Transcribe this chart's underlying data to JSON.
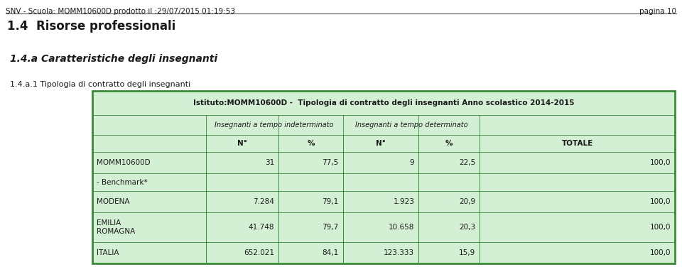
{
  "header_left": "SNV - Scuola: MOMM10600D prodotto il :29/07/2015 01:19:53",
  "header_right": "pagina 10",
  "title1": "1.4  Risorse professionali",
  "title2": "1.4.a Caratteristiche degli insegnanti",
  "title3": "1.4.a.1 Tipologia di contratto degli insegnanti",
  "table_title": "Istituto:MOMM10600D -  Tipologia di contratto degli insegnanti Anno scolastico 2014-2015",
  "col_header1": "Insegnanti a tempo indeterminato",
  "col_header2": "Insegnanti a tempo determinato",
  "col_sub1": "N°",
  "col_sub2": "%",
  "col_sub3": "N°",
  "col_sub4": "%",
  "col_sub5": "TOTALE",
  "rows": [
    {
      "label": "MOMM10600D",
      "n1": "31",
      "p1": "77,5",
      "n2": "9",
      "p2": "22,5",
      "tot": "100,0"
    },
    {
      "label": "- Benchmark*",
      "n1": "",
      "p1": "",
      "n2": "",
      "p2": "",
      "tot": ""
    },
    {
      "label": "MODENA",
      "n1": "7.284",
      "p1": "79,1",
      "n2": "1.923",
      "p2": "20,9",
      "tot": "100,0"
    },
    {
      "label": "EMILIA\nROMAGNA",
      "n1": "41.748",
      "p1": "79,7",
      "n2": "10.658",
      "p2": "20,3",
      "tot": "100,0"
    },
    {
      "label": "ITALIA",
      "n1": "652.021",
      "p1": "84,1",
      "n2": "123.333",
      "p2": "15,9",
      "tot": "100,0"
    }
  ],
  "bg_color": "#ffffff",
  "table_bg": "#d4f0d4",
  "border_color": "#3a8a3a",
  "text_color": "#1a1a1a",
  "header_line_color": "#555555",
  "font_size_page_header": 7.5,
  "font_size_title1": 12,
  "font_size_title2": 10,
  "font_size_title3": 8,
  "font_size_table_title": 7.5,
  "font_size_col_header": 7,
  "font_size_sub": 7.5,
  "font_size_data": 7.5
}
